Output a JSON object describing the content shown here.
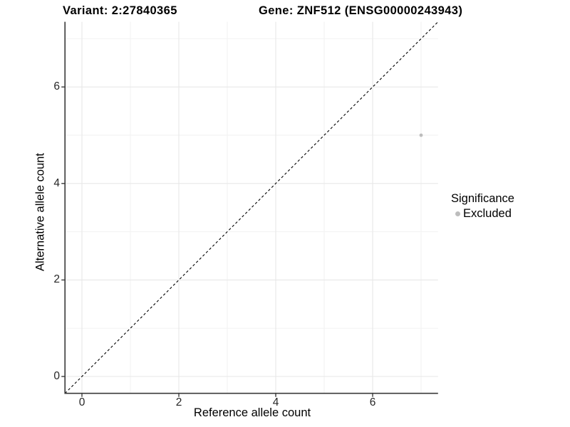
{
  "figure": {
    "title_left": "Variant: 2:27840365",
    "title_right": "Gene: ZNF512 (ENSG00000243943)"
  },
  "legend": {
    "title": "Significance",
    "items": [
      {
        "label": "Excluded",
        "color": "#bdbdbd"
      }
    ]
  },
  "chart_data": {
    "type": "scatter",
    "title": "Variant: 2:27840365 | Gene: ZNF512 (ENSG00000243943)",
    "xlabel": "Reference allele count",
    "ylabel": "Alternative allele count",
    "xlim": [
      -0.35,
      7.35
    ],
    "ylim": [
      -0.35,
      7.35
    ],
    "xticks": [
      0,
      2,
      4,
      6
    ],
    "yticks": [
      0,
      2,
      4,
      6
    ],
    "minor_xticks": [
      1,
      3,
      5,
      7
    ],
    "minor_yticks": [
      1,
      3,
      5,
      7
    ],
    "grid": true,
    "legend_position": "right",
    "series": [
      {
        "name": "Excluded",
        "color": "#bdbdbd",
        "points": [
          {
            "x": 7,
            "y": 5
          }
        ]
      }
    ],
    "reference_line": {
      "type": "identity",
      "style": "dashed",
      "color": "#000000"
    },
    "colors": {
      "grid_major": "#e7e7e7",
      "grid_minor": "#f2f2f2",
      "axis_line": "#3a3a3a",
      "tick_text": "#262626",
      "background": "#ffffff"
    }
  }
}
